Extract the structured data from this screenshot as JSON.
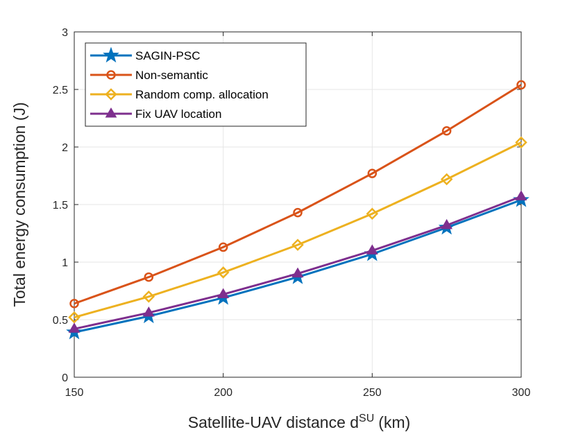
{
  "chart_data": {
    "type": "line",
    "title": "",
    "xlabel": "Satellite-UAV distance d",
    "xlabel_superscript": "SU",
    "xlabel_unit": "(km)",
    "ylabel": "Total energy consumption (J)",
    "xlim": [
      150,
      300
    ],
    "ylim": [
      0,
      3
    ],
    "x": [
      150,
      175,
      200,
      225,
      250,
      275,
      300
    ],
    "xticks": [
      150,
      200,
      250,
      300
    ],
    "xtick_labels": [
      "150",
      "200",
      "250",
      "300"
    ],
    "yticks": [
      0,
      0.5,
      1,
      1.5,
      2,
      2.5,
      3
    ],
    "ytick_labels": [
      "0",
      "0.5",
      "1",
      "1.5",
      "2",
      "2.5",
      "3"
    ],
    "grid": true,
    "legend_position": "top-left",
    "series": [
      {
        "name": "SAGIN-PSC",
        "color": "#0072BD",
        "marker": "star",
        "values": [
          0.39,
          0.53,
          0.69,
          0.87,
          1.07,
          1.3,
          1.54
        ]
      },
      {
        "name": "Non-semantic",
        "color": "#D95319",
        "marker": "circle",
        "values": [
          0.64,
          0.87,
          1.13,
          1.43,
          1.77,
          2.14,
          2.54
        ]
      },
      {
        "name": "Random comp. allocation",
        "color": "#EDB120",
        "marker": "diamond",
        "values": [
          0.52,
          0.7,
          0.91,
          1.15,
          1.42,
          1.72,
          2.04
        ]
      },
      {
        "name": "Fix UAV location",
        "color": "#7E2F8E",
        "marker": "triangle",
        "values": [
          0.42,
          0.56,
          0.72,
          0.9,
          1.1,
          1.32,
          1.57
        ]
      }
    ]
  }
}
